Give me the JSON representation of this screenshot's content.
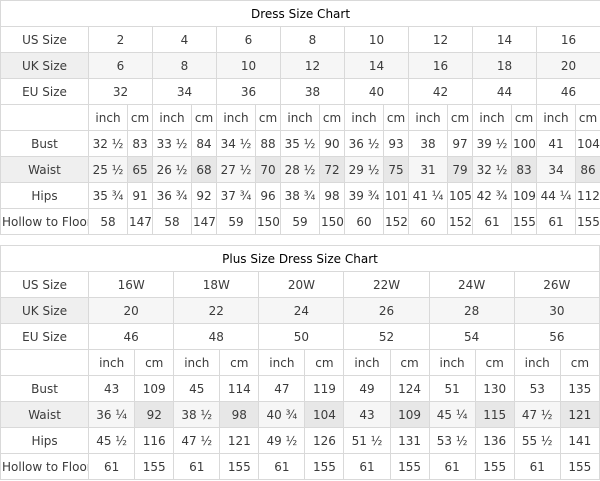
{
  "colors": {
    "border": "#d9d9d9",
    "title_bg": "#f4f4f4",
    "label_col_bg": "#efefef",
    "cm_col_bg": "#ececec",
    "stripe_row_bg": "#f6f6f6",
    "text": "#3b3b3b",
    "title_text": "#000000"
  },
  "chart_data": [
    {
      "type": "table",
      "title": "Dress Size Chart",
      "units": [
        "inch",
        "cm"
      ],
      "size_rows": [
        {
          "label": "US Size",
          "values": [
            "2",
            "4",
            "6",
            "8",
            "10",
            "12",
            "14",
            "16"
          ]
        },
        {
          "label": "UK Size",
          "values": [
            "6",
            "8",
            "10",
            "12",
            "14",
            "16",
            "18",
            "20"
          ]
        },
        {
          "label": "EU Size",
          "values": [
            "32",
            "34",
            "36",
            "38",
            "40",
            "42",
            "44",
            "46"
          ]
        }
      ],
      "measure_rows": [
        {
          "label": "Bust",
          "pairs": [
            [
              "32 ½",
              "83"
            ],
            [
              "33 ½",
              "84"
            ],
            [
              "34 ½",
              "88"
            ],
            [
              "35 ½",
              "90"
            ],
            [
              "36 ½",
              "93"
            ],
            [
              "38",
              "97"
            ],
            [
              "39 ½",
              "100"
            ],
            [
              "41",
              "104"
            ]
          ]
        },
        {
          "label": "Waist",
          "pairs": [
            [
              "25 ½",
              "65"
            ],
            [
              "26 ½",
              "68"
            ],
            [
              "27 ½",
              "70"
            ],
            [
              "28 ½",
              "72"
            ],
            [
              "29 ½",
              "75"
            ],
            [
              "31",
              "79"
            ],
            [
              "32 ½",
              "83"
            ],
            [
              "34",
              "86"
            ]
          ]
        },
        {
          "label": "Hips",
          "pairs": [
            [
              "35 ¾",
              "91"
            ],
            [
              "36 ¾",
              "92"
            ],
            [
              "37 ¾",
              "96"
            ],
            [
              "38 ¾",
              "98"
            ],
            [
              "39 ¾",
              "101"
            ],
            [
              "41 ¼",
              "105"
            ],
            [
              "42 ¾",
              "109"
            ],
            [
              "44 ¼",
              "112"
            ]
          ]
        },
        {
          "label": "Hollow to Floor",
          "pairs": [
            [
              "58",
              "147"
            ],
            [
              "58",
              "147"
            ],
            [
              "59",
              "150"
            ],
            [
              "59",
              "150"
            ],
            [
              "60",
              "152"
            ],
            [
              "60",
              "152"
            ],
            [
              "61",
              "155"
            ],
            [
              "61",
              "155"
            ]
          ]
        }
      ]
    },
    {
      "type": "table",
      "title": "Plus Size Dress Size Chart",
      "units": [
        "inch",
        "cm"
      ],
      "size_rows": [
        {
          "label": "US Size",
          "values": [
            "16W",
            "18W",
            "20W",
            "22W",
            "24W",
            "26W"
          ]
        },
        {
          "label": "UK Size",
          "values": [
            "20",
            "22",
            "24",
            "26",
            "28",
            "30"
          ]
        },
        {
          "label": "EU Size",
          "values": [
            "46",
            "48",
            "50",
            "52",
            "54",
            "56"
          ]
        }
      ],
      "measure_rows": [
        {
          "label": "Bust",
          "pairs": [
            [
              "43",
              "109"
            ],
            [
              "45",
              "114"
            ],
            [
              "47",
              "119"
            ],
            [
              "49",
              "124"
            ],
            [
              "51",
              "130"
            ],
            [
              "53",
              "135"
            ]
          ]
        },
        {
          "label": "Waist",
          "pairs": [
            [
              "36 ¼",
              "92"
            ],
            [
              "38 ½",
              "98"
            ],
            [
              "40 ¾",
              "104"
            ],
            [
              "43",
              "109"
            ],
            [
              "45 ¼",
              "115"
            ],
            [
              "47 ½",
              "121"
            ]
          ]
        },
        {
          "label": "Hips",
          "pairs": [
            [
              "45 ½",
              "116"
            ],
            [
              "47 ½",
              "121"
            ],
            [
              "49 ½",
              "126"
            ],
            [
              "51 ½",
              "131"
            ],
            [
              "53 ½",
              "136"
            ],
            [
              "55 ½",
              "141"
            ]
          ]
        },
        {
          "label": "Hollow to Floor",
          "pairs": [
            [
              "61",
              "155"
            ],
            [
              "61",
              "155"
            ],
            [
              "61",
              "155"
            ],
            [
              "61",
              "155"
            ],
            [
              "61",
              "155"
            ],
            [
              "61",
              "155"
            ]
          ]
        }
      ]
    }
  ]
}
